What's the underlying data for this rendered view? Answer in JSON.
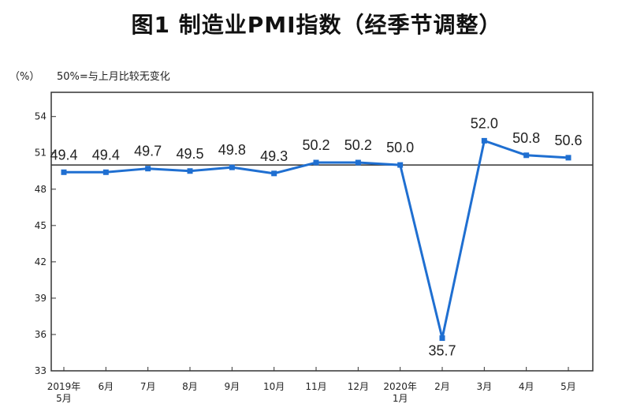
{
  "title": "图1  制造业PMI指数（经季节调整）",
  "unit_label": "（%）",
  "baseline_note": "50%=与上月比较无变化",
  "colors": {
    "line": "#1F6FD1",
    "baseline": "#333333",
    "frame": "#333333"
  },
  "chart_data": {
    "type": "line",
    "title": "图1  制造业PMI指数（经季节调整）",
    "xlabel": "",
    "ylabel": "（%）",
    "ylim": [
      33,
      56
    ],
    "yticks": [
      33,
      36,
      39,
      42,
      45,
      48,
      51,
      54
    ],
    "baseline": 50,
    "categories": [
      [
        "2019年",
        "5月"
      ],
      [
        "6月"
      ],
      [
        "7月"
      ],
      [
        "8月"
      ],
      [
        "9月"
      ],
      [
        "10月"
      ],
      [
        "11月"
      ],
      [
        "12月"
      ],
      [
        "2020年",
        "1月"
      ],
      [
        "2月"
      ],
      [
        "3月"
      ],
      [
        "4月"
      ],
      [
        "5月"
      ]
    ],
    "values": [
      49.4,
      49.4,
      49.7,
      49.5,
      49.8,
      49.3,
      50.2,
      50.2,
      50.0,
      35.7,
      52.0,
      50.8,
      50.6
    ],
    "data_labels": [
      "49.4",
      "49.4",
      "49.7",
      "49.5",
      "49.8",
      "49.3",
      "50.2",
      "50.2",
      "50.0",
      "35.7",
      "52.0",
      "50.8",
      "50.6"
    ],
    "grid": false
  }
}
